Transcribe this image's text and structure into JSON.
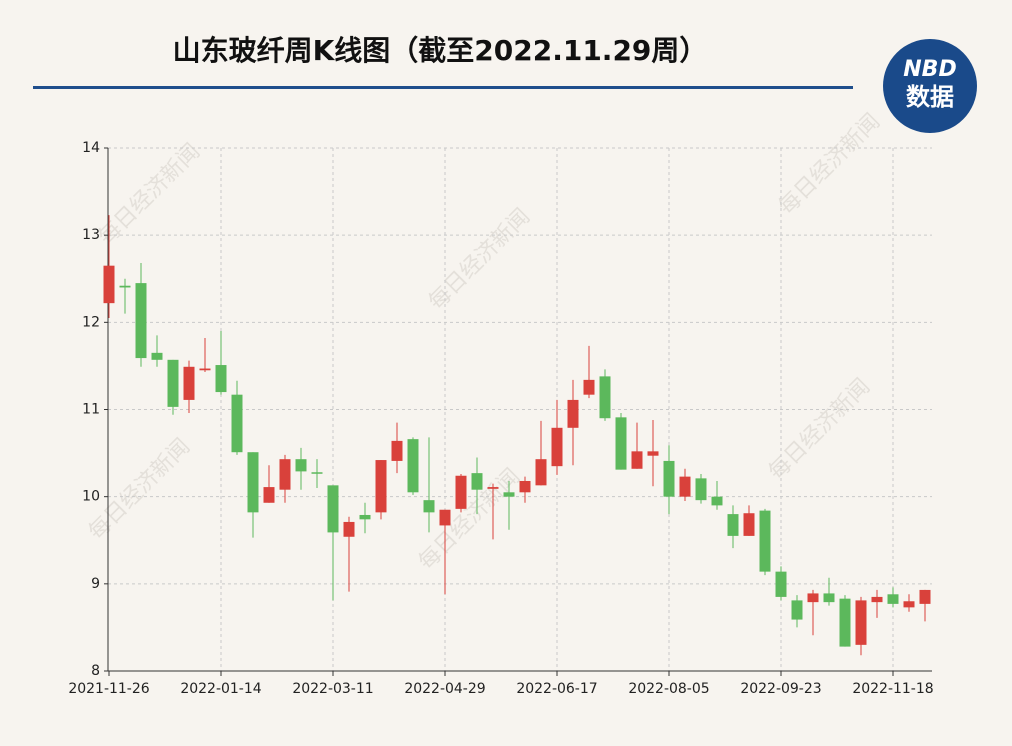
{
  "chart_data": {
    "type": "candlestick",
    "title": "山东玻纤周K线图（截至2022.11.29周）",
    "logo": {
      "top": "NBD",
      "bottom": "数据"
    },
    "watermark": "每日经济新闻",
    "categories": [
      "2021-11-26",
      null,
      null,
      null,
      null,
      null,
      null,
      "2022-01-14",
      null,
      null,
      null,
      null,
      null,
      null,
      "2022-03-11",
      null,
      null,
      null,
      null,
      null,
      null,
      "2022-04-29",
      null,
      null,
      null,
      null,
      null,
      null,
      "2022-06-17",
      null,
      null,
      null,
      null,
      null,
      null,
      "2022-08-05",
      null,
      null,
      null,
      null,
      null,
      null,
      "2022-09-23",
      null,
      null,
      null,
      null,
      null,
      null,
      "2022-11-18",
      null,
      null
    ],
    "open": [
      12.22,
      12.42,
      12.45,
      11.65,
      11.57,
      11.11,
      11.45,
      11.51,
      11.17,
      10.51,
      9.93,
      10.08,
      10.43,
      10.28,
      10.13,
      9.54,
      9.79,
      9.82,
      10.41,
      10.66,
      9.96,
      9.67,
      9.86,
      10.27,
      10.09,
      10.05,
      10.05,
      10.13,
      10.35,
      10.79,
      11.17,
      11.38,
      10.91,
      10.32,
      10.47,
      10.41,
      10.0,
      10.21,
      10.0,
      9.8,
      9.55,
      9.84,
      9.14,
      8.81,
      8.79,
      8.89,
      8.83,
      8.3,
      8.79,
      8.88,
      8.73,
      8.77
    ],
    "high": [
      13.23,
      12.5,
      12.68,
      11.85,
      11.57,
      11.56,
      11.82,
      11.9,
      11.33,
      10.51,
      10.36,
      10.48,
      10.56,
      10.43,
      10.13,
      9.77,
      9.93,
      10.42,
      10.85,
      10.68,
      10.68,
      9.85,
      10.26,
      10.45,
      10.15,
      10.18,
      10.23,
      10.87,
      11.11,
      11.34,
      11.73,
      11.46,
      10.96,
      10.85,
      10.88,
      10.59,
      10.32,
      10.26,
      10.18,
      9.9,
      9.9,
      9.86,
      9.2,
      8.87,
      8.93,
      9.07,
      8.87,
      8.85,
      8.93,
      8.96,
      8.88,
      8.93
    ],
    "low": [
      12.05,
      12.1,
      11.49,
      11.49,
      10.94,
      10.96,
      11.43,
      11.17,
      10.48,
      9.53,
      9.93,
      9.93,
      10.08,
      10.1,
      8.81,
      8.91,
      9.58,
      9.74,
      10.27,
      10.02,
      9.59,
      8.88,
      9.82,
      9.8,
      9.51,
      9.62,
      9.93,
      10.13,
      10.25,
      10.36,
      11.13,
      10.87,
      10.31,
      10.32,
      10.12,
      9.8,
      9.95,
      9.92,
      9.85,
      9.41,
      9.55,
      9.1,
      8.81,
      8.5,
      8.41,
      8.75,
      8.28,
      8.18,
      8.61,
      8.73,
      8.68,
      8.57
    ],
    "close": [
      12.65,
      12.4,
      11.59,
      11.57,
      11.03,
      11.49,
      11.47,
      11.2,
      10.51,
      9.82,
      10.11,
      10.43,
      10.29,
      10.27,
      9.59,
      9.71,
      9.74,
      10.42,
      10.64,
      10.05,
      9.82,
      9.85,
      10.24,
      10.08,
      10.11,
      10.0,
      10.18,
      10.43,
      10.79,
      11.11,
      11.34,
      10.9,
      10.31,
      10.52,
      10.52,
      10.0,
      10.23,
      9.96,
      9.9,
      9.55,
      9.81,
      9.14,
      8.85,
      8.59,
      8.89,
      8.79,
      8.28,
      8.81,
      8.85,
      8.77,
      8.8,
      8.93
    ],
    "up_color": "#d9413b",
    "down_color": "#5cb85c",
    "ylim": [
      8,
      14
    ],
    "yticks": [
      8,
      9,
      10,
      11,
      12,
      13,
      14
    ],
    "grid": true
  }
}
